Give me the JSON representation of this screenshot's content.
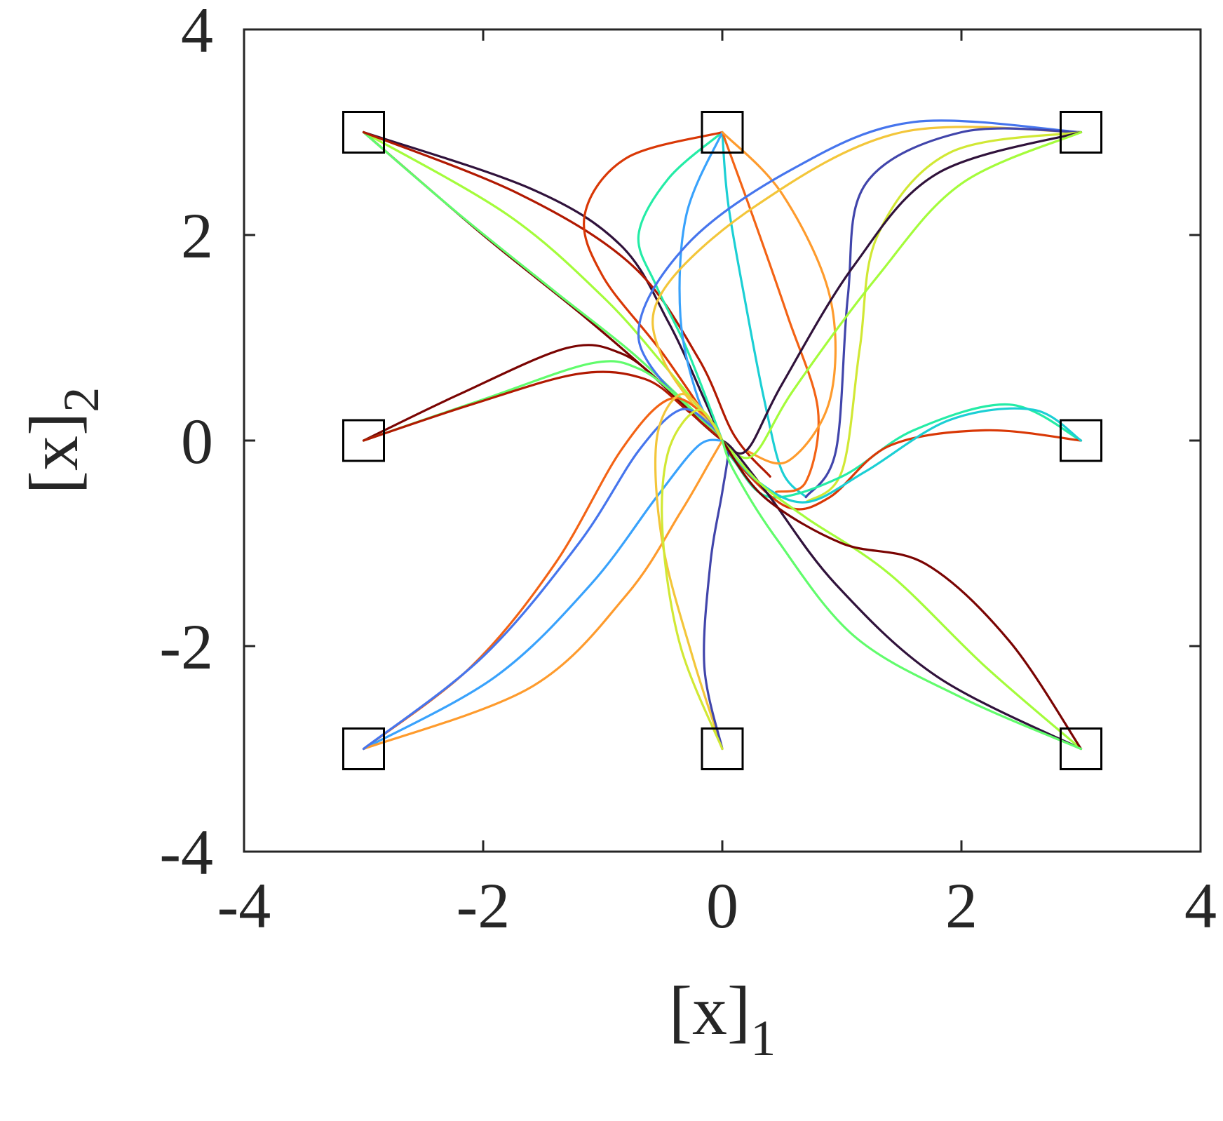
{
  "chart_data": {
    "type": "line",
    "title": "",
    "xlabel": "[x]",
    "xlabel_sub": "1",
    "ylabel": "[x]",
    "ylabel_sub": "2",
    "xlim": [
      -4,
      4
    ],
    "ylim": [
      -4,
      4
    ],
    "xticks": [
      -4,
      -2,
      0,
      2,
      4
    ],
    "yticks": [
      -4,
      -2,
      0,
      2,
      4
    ],
    "xtick_labels": [
      "-4",
      "-2",
      "0",
      "2",
      "4"
    ],
    "ytick_labels": [
      "-4",
      "-2",
      "0",
      "2",
      "4"
    ],
    "grid": false,
    "box": true,
    "tick_direction": "in",
    "marker_color": "#000000",
    "start_markers": {
      "shape": "square",
      "points": [
        [
          -3,
          3
        ],
        [
          0,
          3
        ],
        [
          3,
          3
        ],
        [
          -3,
          0
        ],
        [
          3,
          0
        ],
        [
          -3,
          -3
        ],
        [
          0,
          -3
        ],
        [
          3,
          -3
        ]
      ]
    },
    "colormap": [
      "#30123b",
      "#4145ab",
      "#4675ed",
      "#39a2fc",
      "#1bcfd4",
      "#24eca6",
      "#61fc6c",
      "#a4fc3b",
      "#d1e834",
      "#f3c63a",
      "#fe9b2d",
      "#f36315",
      "#d93806",
      "#b11901",
      "#7a0402"
    ],
    "series": [
      {
        "start": [
          -3,
          3
        ],
        "points": [
          [
            -3,
            3
          ],
          [
            -1.6,
            2.45
          ],
          [
            -0.85,
            1.9
          ],
          [
            -0.45,
            1.15
          ],
          [
            -0.15,
            0.4
          ],
          [
            0,
            0
          ]
        ]
      },
      {
        "start": [
          -3,
          3
        ],
        "points": [
          [
            -3,
            3
          ],
          [
            -1.8,
            2.2
          ],
          [
            -1.0,
            1.4
          ],
          [
            -0.5,
            0.75
          ],
          [
            -0.15,
            0.25
          ],
          [
            0,
            0
          ]
        ]
      },
      {
        "start": [
          -3,
          3
        ],
        "points": [
          [
            -3,
            3
          ],
          [
            -2.0,
            2.0
          ],
          [
            -1.2,
            1.25
          ],
          [
            -0.6,
            0.65
          ],
          [
            -0.2,
            0.2
          ],
          [
            0,
            0
          ]
        ]
      },
      {
        "start": [
          -3,
          3
        ],
        "points": [
          [
            -3,
            3
          ],
          [
            -2.2,
            2.2
          ],
          [
            -1.4,
            1.45
          ],
          [
            -0.75,
            0.85
          ],
          [
            -0.25,
            0.3
          ],
          [
            0,
            0
          ]
        ]
      },
      {
        "start": [
          -3,
          3
        ],
        "points": [
          [
            -3,
            3
          ],
          [
            -1.7,
            2.4
          ],
          [
            -0.75,
            1.7
          ],
          [
            -0.2,
            0.8
          ],
          [
            0.1,
            0.05
          ],
          [
            0.4,
            -0.35
          ]
        ]
      },
      {
        "start": [
          0,
          3
        ],
        "points": [
          [
            0,
            3
          ],
          [
            -0.45,
            2.55
          ],
          [
            -0.7,
            2.0
          ],
          [
            -0.55,
            1.5
          ],
          [
            -0.3,
            0.9
          ],
          [
            0,
            0
          ]
        ]
      },
      {
        "start": [
          0,
          3
        ],
        "points": [
          [
            0,
            3
          ],
          [
            -0.8,
            2.75
          ],
          [
            -1.15,
            2.2
          ],
          [
            -1.0,
            1.6
          ],
          [
            -0.5,
            0.85
          ],
          [
            0,
            0
          ]
        ]
      },
      {
        "start": [
          0,
          3
        ],
        "points": [
          [
            0,
            3
          ],
          [
            0.05,
            2.3
          ],
          [
            0.2,
            1.3
          ],
          [
            0.35,
            0.4
          ],
          [
            0.5,
            -0.3
          ],
          [
            0.7,
            -0.55
          ]
        ]
      },
      {
        "start": [
          0,
          3
        ],
        "points": [
          [
            0,
            3
          ],
          [
            0.25,
            2.2
          ],
          [
            0.55,
            1.2
          ],
          [
            0.8,
            0.3
          ],
          [
            0.7,
            -0.4
          ],
          [
            0.45,
            -0.5
          ]
        ]
      },
      {
        "start": [
          0,
          3
        ],
        "points": [
          [
            0,
            3
          ],
          [
            -0.3,
            2.2
          ],
          [
            -0.35,
            1.2
          ],
          [
            -0.2,
            0.4
          ],
          [
            0,
            0
          ]
        ]
      },
      {
        "start": [
          0,
          3
        ],
        "points": [
          [
            0,
            3
          ],
          [
            0.5,
            2.4
          ],
          [
            0.9,
            1.4
          ],
          [
            0.9,
            0.4
          ],
          [
            0.55,
            -0.2
          ],
          [
            0.2,
            -0.1
          ]
        ]
      },
      {
        "start": [
          3,
          3
        ],
        "points": [
          [
            3,
            3
          ],
          [
            1.6,
            3.1
          ],
          [
            0.6,
            2.65
          ],
          [
            -0.3,
            1.9
          ],
          [
            -0.7,
            1.0
          ],
          [
            -0.2,
            0.2
          ]
        ]
      },
      {
        "start": [
          3,
          3
        ],
        "points": [
          [
            3,
            3
          ],
          [
            1.5,
            3.0
          ],
          [
            0.3,
            2.3
          ],
          [
            -0.5,
            1.45
          ],
          [
            -0.5,
            0.8
          ],
          [
            0,
            0
          ]
        ]
      },
      {
        "start": [
          3,
          3
        ],
        "points": [
          [
            3,
            3
          ],
          [
            2.0,
            3.0
          ],
          [
            1.2,
            2.5
          ],
          [
            1.05,
            1.4
          ],
          [
            0.95,
            -0.1
          ],
          [
            0.7,
            -0.55
          ]
        ]
      },
      {
        "start": [
          3,
          3
        ],
        "points": [
          [
            3,
            3
          ],
          [
            1.9,
            2.8
          ],
          [
            1.3,
            2.0
          ],
          [
            1.15,
            0.9
          ],
          [
            1.0,
            -0.3
          ],
          [
            0.7,
            -0.6
          ]
        ]
      },
      {
        "start": [
          3,
          3
        ],
        "points": [
          [
            3,
            3
          ],
          [
            1.8,
            2.6
          ],
          [
            1.1,
            1.7
          ],
          [
            0.5,
            0.55
          ],
          [
            0.2,
            -0.1
          ],
          [
            0,
            0
          ]
        ]
      },
      {
        "start": [
          3,
          3
        ],
        "points": [
          [
            3,
            3
          ],
          [
            2.0,
            2.5
          ],
          [
            1.3,
            1.6
          ],
          [
            0.6,
            0.5
          ],
          [
            0.25,
            -0.15
          ],
          [
            0,
            0
          ]
        ]
      },
      {
        "start": [
          -3,
          0
        ],
        "points": [
          [
            -3,
            0
          ],
          [
            -2.2,
            0.45
          ],
          [
            -1.3,
            0.9
          ],
          [
            -0.85,
            0.85
          ],
          [
            -0.5,
            0.55
          ],
          [
            -0.15,
            0.15
          ],
          [
            0,
            0
          ]
        ]
      },
      {
        "start": [
          -3,
          0
        ],
        "points": [
          [
            -3,
            0
          ],
          [
            -2.0,
            0.4
          ],
          [
            -1.1,
            0.75
          ],
          [
            -0.7,
            0.7
          ],
          [
            -0.35,
            0.4
          ],
          [
            0,
            0
          ]
        ]
      },
      {
        "start": [
          -3,
          0
        ],
        "points": [
          [
            -3,
            0
          ],
          [
            -2.1,
            0.35
          ],
          [
            -1.2,
            0.65
          ],
          [
            -0.65,
            0.6
          ],
          [
            -0.3,
            0.3
          ],
          [
            0,
            0
          ]
        ]
      },
      {
        "start": [
          3,
          0
        ],
        "points": [
          [
            3,
            0
          ],
          [
            2.4,
            0.35
          ],
          [
            1.6,
            0.1
          ],
          [
            1.0,
            -0.35
          ],
          [
            0.4,
            -0.55
          ],
          [
            0.1,
            -0.2
          ],
          [
            0,
            0
          ]
        ]
      },
      {
        "start": [
          3,
          0
        ],
        "points": [
          [
            3,
            0
          ],
          [
            2.2,
            0.1
          ],
          [
            1.4,
            -0.05
          ],
          [
            0.9,
            -0.55
          ],
          [
            0.55,
            -0.65
          ],
          [
            0.15,
            -0.25
          ],
          [
            0,
            0
          ]
        ]
      },
      {
        "start": [
          3,
          0
        ],
        "points": [
          [
            3,
            0
          ],
          [
            2.6,
            0.3
          ],
          [
            1.9,
            0.2
          ],
          [
            1.2,
            -0.3
          ],
          [
            0.7,
            -0.6
          ],
          [
            0.3,
            -0.4
          ],
          [
            0,
            0
          ]
        ]
      },
      {
        "start": [
          -3,
          -3
        ],
        "points": [
          [
            -3,
            -3
          ],
          [
            -2.1,
            -2.2
          ],
          [
            -1.4,
            -1.2
          ],
          [
            -0.85,
            -0.1
          ],
          [
            -0.45,
            0.4
          ],
          [
            -0.15,
            0.25
          ],
          [
            0,
            0
          ]
        ]
      },
      {
        "start": [
          -3,
          -3
        ],
        "points": [
          [
            -3,
            -3
          ],
          [
            -1.9,
            -2.3
          ],
          [
            -1.1,
            -1.4
          ],
          [
            -0.55,
            -0.55
          ],
          [
            -0.2,
            -0.05
          ],
          [
            0,
            0
          ]
        ]
      },
      {
        "start": [
          -3,
          -3
        ],
        "points": [
          [
            -3,
            -3
          ],
          [
            -1.6,
            -2.4
          ],
          [
            -0.8,
            -1.5
          ],
          [
            -0.35,
            -0.7
          ],
          [
            -0.1,
            -0.2
          ],
          [
            0,
            0
          ]
        ]
      },
      {
        "start": [
          -3,
          -3
        ],
        "points": [
          [
            -3,
            -3
          ],
          [
            -2.0,
            -2.1
          ],
          [
            -1.2,
            -1.0
          ],
          [
            -0.7,
            -0.1
          ],
          [
            -0.35,
            0.3
          ],
          [
            -0.1,
            0.15
          ],
          [
            0,
            0
          ]
        ]
      },
      {
        "start": [
          0,
          -3
        ],
        "points": [
          [
            0,
            -3
          ],
          [
            -0.25,
            -2.1
          ],
          [
            -0.5,
            -1.0
          ],
          [
            -0.55,
            0.0
          ],
          [
            -0.35,
            0.45
          ],
          [
            -0.1,
            0.2
          ],
          [
            0,
            0
          ]
        ]
      },
      {
        "start": [
          0,
          -3
        ],
        "points": [
          [
            0,
            -3
          ],
          [
            -0.15,
            -2.2
          ],
          [
            -0.1,
            -1.2
          ],
          [
            0.0,
            -0.5
          ],
          [
            0.05,
            -0.1
          ],
          [
            0,
            0
          ]
        ]
      },
      {
        "start": [
          0,
          -3
        ],
        "points": [
          [
            0,
            -3
          ],
          [
            -0.35,
            -2.0
          ],
          [
            -0.5,
            -0.9
          ],
          [
            -0.45,
            -0.1
          ],
          [
            -0.2,
            0.3
          ],
          [
            0,
            0
          ]
        ]
      },
      {
        "start": [
          3,
          -3
        ],
        "points": [
          [
            3,
            -3
          ],
          [
            1.8,
            -2.3
          ],
          [
            0.95,
            -1.4
          ],
          [
            0.4,
            -0.55
          ],
          [
            0.1,
            -0.1
          ],
          [
            0,
            0
          ]
        ]
      },
      {
        "start": [
          3,
          -3
        ],
        "points": [
          [
            3,
            -3
          ],
          [
            2.2,
            -2.2
          ],
          [
            1.4,
            -1.3
          ],
          [
            0.7,
            -0.75
          ],
          [
            0.3,
            -0.4
          ],
          [
            0,
            0
          ]
        ]
      },
      {
        "start": [
          3,
          -3
        ],
        "points": [
          [
            3,
            -3
          ],
          [
            2.4,
            -1.95
          ],
          [
            1.7,
            -1.2
          ],
          [
            1.0,
            -1.0
          ],
          [
            0.35,
            -0.55
          ],
          [
            0,
            0
          ]
        ]
      },
      {
        "start": [
          3,
          -3
        ],
        "points": [
          [
            3,
            -3
          ],
          [
            2.0,
            -2.5
          ],
          [
            1.1,
            -1.9
          ],
          [
            0.45,
            -0.95
          ],
          [
            0.1,
            -0.3
          ],
          [
            0,
            0
          ]
        ]
      }
    ]
  }
}
